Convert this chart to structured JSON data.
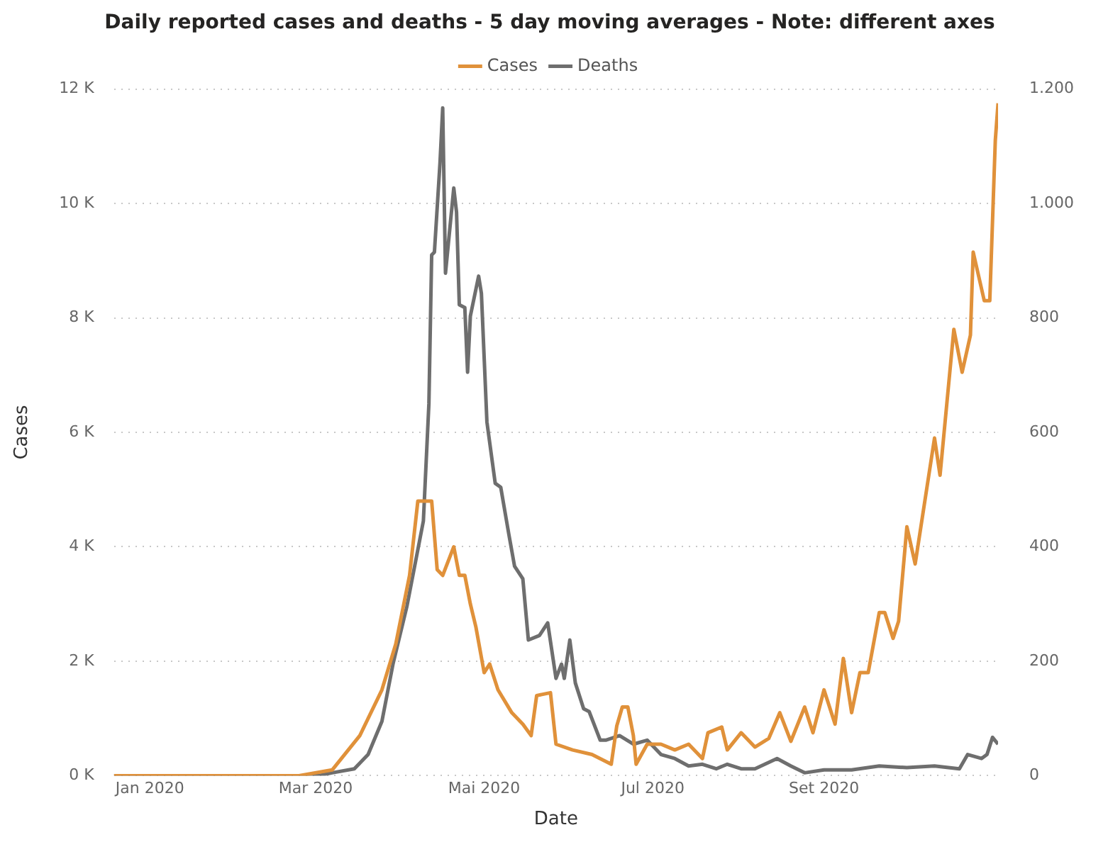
{
  "chart_data": {
    "type": "line",
    "title": "Daily reported cases and deaths - 5 day moving averages - Note: different axes",
    "xlabel": "Date",
    "ylabel": "Cases",
    "legend": "top",
    "grid": "y",
    "marker": "none",
    "xlim": [
      "2019-12-19",
      "2020-11-03"
    ],
    "xticks": [
      {
        "value": "2020-01-01",
        "label": "Jan 2020"
      },
      {
        "value": "2020-03-01",
        "label": "Mar 2020"
      },
      {
        "value": "2020-05-01",
        "label": "Mai 2020"
      },
      {
        "value": "2020-07-01",
        "label": "Jul 2020"
      },
      {
        "value": "2020-09-01",
        "label": "Set 2020"
      }
    ],
    "ylim": [
      0,
      12000
    ],
    "yticks": [
      {
        "value": 0,
        "label": "0 K"
      },
      {
        "value": 2000,
        "label": "2 K"
      },
      {
        "value": 4000,
        "label": "4 K"
      },
      {
        "value": 6000,
        "label": "6 K"
      },
      {
        "value": 8000,
        "label": "8 K"
      },
      {
        "value": 10000,
        "label": "10 K"
      },
      {
        "value": 12000,
        "label": "12 K"
      }
    ],
    "y2lim": [
      0,
      1200
    ],
    "y2ticks": [
      0,
      200,
      400,
      600,
      800,
      {
        "value": 1000,
        "label": "1.000"
      },
      {
        "value": 1200,
        "label": "1.200"
      }
    ],
    "series": [
      {
        "name": "Cases",
        "color": "#e0913a",
        "x": [
          "2019-12-19",
          "2020-02-24",
          "2020-03-07",
          "2020-03-17",
          "2020-03-25",
          "2020-03-30",
          "2020-04-04",
          "2020-04-07",
          "2020-04-12",
          "2020-04-14",
          "2020-04-16",
          "2020-04-20",
          "2020-04-22",
          "2020-04-24",
          "2020-04-26",
          "2020-04-28",
          "2020-05-01",
          "2020-05-03",
          "2020-05-06",
          "2020-05-11",
          "2020-05-15",
          "2020-05-18",
          "2020-05-20",
          "2020-05-25",
          "2020-05-27",
          "2020-06-02",
          "2020-06-09",
          "2020-06-16",
          "2020-06-18",
          "2020-06-20",
          "2020-06-22",
          "2020-06-24",
          "2020-06-25",
          "2020-06-29",
          "2020-07-04",
          "2020-07-09",
          "2020-07-14",
          "2020-07-19",
          "2020-07-21",
          "2020-07-26",
          "2020-07-28",
          "2020-08-02",
          "2020-08-07",
          "2020-08-12",
          "2020-08-16",
          "2020-08-20",
          "2020-08-25",
          "2020-08-28",
          "2020-09-01",
          "2020-09-05",
          "2020-09-08",
          "2020-09-11",
          "2020-09-14",
          "2020-09-17",
          "2020-09-21",
          "2020-09-23",
          "2020-09-26",
          "2020-09-28",
          "2020-10-01",
          "2020-10-04",
          "2020-10-11",
          "2020-10-13",
          "2020-10-18",
          "2020-10-21",
          "2020-10-24",
          "2020-10-25",
          "2020-10-29",
          "2020-10-31",
          "2020-11-02",
          "2020-11-03"
        ],
        "values": [
          0,
          0,
          100,
          700,
          1500,
          2300,
          3500,
          4800,
          4800,
          3600,
          3500,
          4000,
          3500,
          3500,
          3000,
          2600,
          1800,
          1950,
          1500,
          1100,
          900,
          700,
          1400,
          1450,
          550,
          450,
          370,
          200,
          870,
          1200,
          1200,
          700,
          200,
          550,
          550,
          450,
          550,
          300,
          750,
          850,
          450,
          750,
          500,
          650,
          1100,
          600,
          1200,
          750,
          1500,
          900,
          2050,
          1100,
          1800,
          1800,
          2850,
          2850,
          2400,
          2700,
          4350,
          3700,
          5900,
          5250,
          7800,
          7050,
          7700,
          9150,
          8300,
          8300,
          11100,
          11750
        ]
      },
      {
        "name": "Deaths",
        "color": "#6e6e6e",
        "axis": "y2",
        "x": [
          "2019-12-19",
          "2020-03-02",
          "2020-03-07",
          "2020-03-15",
          "2020-03-20",
          "2020-03-25",
          "2020-03-29",
          "2020-04-03",
          "2020-04-09",
          "2020-04-11",
          "2020-04-12",
          "2020-04-13",
          "2020-04-15",
          "2020-04-16",
          "2020-04-17",
          "2020-04-20",
          "2020-04-21",
          "2020-04-22",
          "2020-04-24",
          "2020-04-25",
          "2020-04-26",
          "2020-04-29",
          "2020-04-30",
          "2020-05-02",
          "2020-05-05",
          "2020-05-07",
          "2020-05-10",
          "2020-05-12",
          "2020-05-15",
          "2020-05-17",
          "2020-05-21",
          "2020-05-24",
          "2020-05-27",
          "2020-05-29",
          "2020-05-30",
          "2020-06-01",
          "2020-06-03",
          "2020-06-06",
          "2020-06-08",
          "2020-06-12",
          "2020-06-14",
          "2020-06-19",
          "2020-06-24",
          "2020-06-29",
          "2020-07-04",
          "2020-07-09",
          "2020-07-14",
          "2020-07-19",
          "2020-07-24",
          "2020-07-28",
          "2020-08-02",
          "2020-08-07",
          "2020-08-15",
          "2020-08-20",
          "2020-08-25",
          "2020-09-01",
          "2020-09-11",
          "2020-09-21",
          "2020-10-01",
          "2020-10-11",
          "2020-10-20",
          "2020-10-23",
          "2020-10-28",
          "2020-10-30",
          "2020-11-01",
          "2020-11-03"
        ],
        "values": [
          0,
          0,
          5,
          12,
          37,
          95,
          195,
          295,
          445,
          650,
          910,
          915,
          1070,
          1167,
          878,
          1027,
          985,
          823,
          818,
          705,
          803,
          873,
          843,
          618,
          511,
          504,
          420,
          366,
          344,
          237,
          245,
          267,
          170,
          195,
          170,
          237,
          162,
          117,
          112,
          62,
          62,
          70,
          55,
          62,
          37,
          30,
          17,
          20,
          12,
          20,
          12,
          12,
          30,
          17,
          5,
          10,
          10,
          17,
          14,
          17,
          12,
          37,
          30,
          37,
          67,
          55
        ]
      }
    ]
  }
}
